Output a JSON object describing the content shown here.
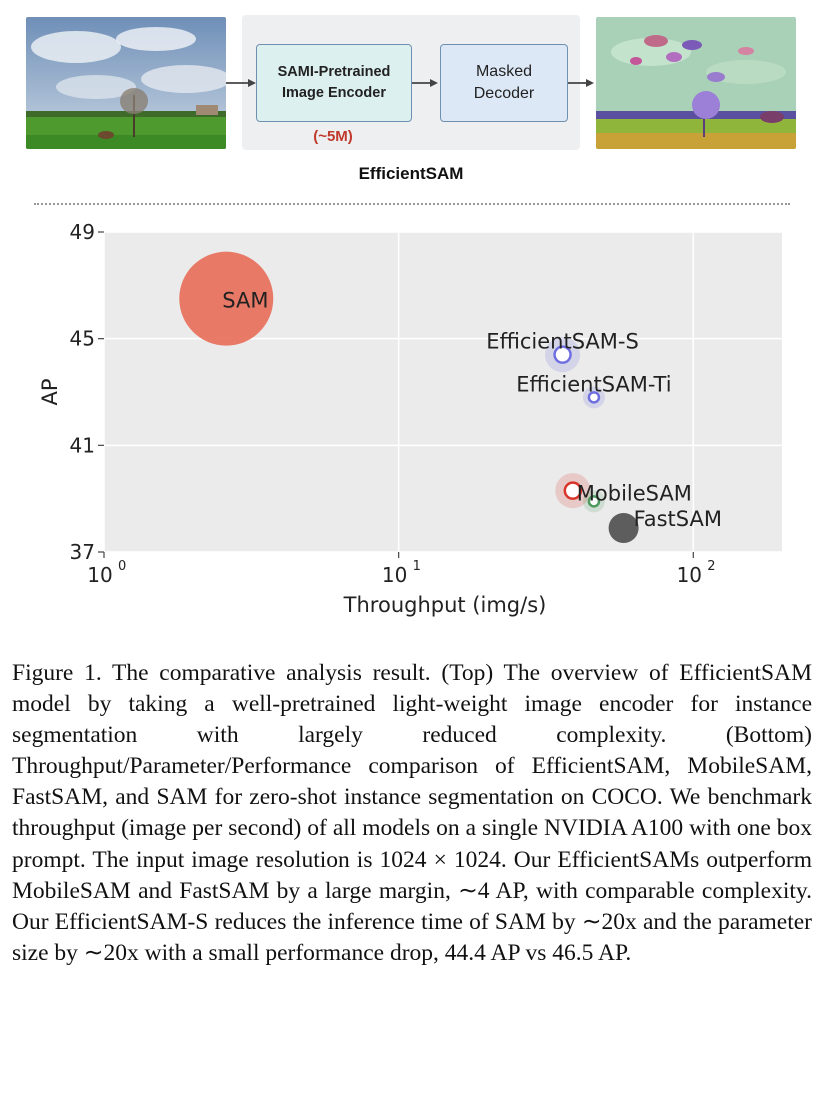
{
  "pipeline": {
    "encoder_line1": "SAMI-Pretrained",
    "encoder_line2": "Image Encoder",
    "decoder_line1": "Masked",
    "decoder_line2": "Decoder",
    "param_count": "(~5M)",
    "title": "EfficientSAM"
  },
  "chart_data": {
    "type": "scatter",
    "title": "",
    "xlabel": "Throughput (img/s)",
    "ylabel": "AP",
    "x_scale": "log",
    "xlim": [
      1,
      200
    ],
    "ylim": [
      37,
      49
    ],
    "x_ticks": [
      1,
      10,
      100
    ],
    "x_tick_labels": [
      "10",
      "10",
      "10"
    ],
    "x_tick_exponents": [
      "0",
      "1",
      "2"
    ],
    "y_ticks": [
      37,
      41,
      45,
      49
    ],
    "y_tick_labels": [
      "37",
      "41",
      "45",
      "49"
    ],
    "grid": true,
    "points": [
      {
        "label": "SAM",
        "x": 2.6,
        "y": 46.5,
        "size": "large",
        "color": "#e8735f"
      },
      {
        "label": "EfficientSAM-S",
        "x": 36,
        "y": 44.4,
        "size": "small",
        "color": "#6f6fe0"
      },
      {
        "label": "EfficientSAM-Ti",
        "x": 46,
        "y": 42.8,
        "size": "tiny",
        "color": "#6f6fe0"
      },
      {
        "label": "MobileSAM",
        "x": 39,
        "y": 39.3,
        "size": "small",
        "color": "#d9352a"
      },
      {
        "label": "",
        "x": 46,
        "y": 38.9,
        "size": "tiny",
        "color": "#4c9a5e"
      },
      {
        "label": "FastSAM",
        "x": 58,
        "y": 37.9,
        "size": "medium",
        "color": "#555555"
      }
    ]
  },
  "caption": {
    "text": "Figure 1.  The comparative analysis result.  (Top) The overview of EfficientSAM model by taking a well-pretrained light-weight image encoder for instance segmentation with largely reduced complexity. (Bottom) Throughput/Parameter/Performance comparison of EfficientSAM, MobileSAM, FastSAM, and SAM for zero-shot instance segmentation on COCO. We benchmark throughput (image per second) of all models on a single NVIDIA A100 with one box prompt.  The input image resolution is 1024 × 1024.  Our EfficientSAMs outperform MobileSAM and FastSAM by a large margin, ∼4 AP, with comparable complexity. Our EfficientSAM-S reduces the inference time of SAM by ∼20x and the parameter size by ∼20x with a small performance drop, 44.4 AP vs 46.5 AP."
  }
}
